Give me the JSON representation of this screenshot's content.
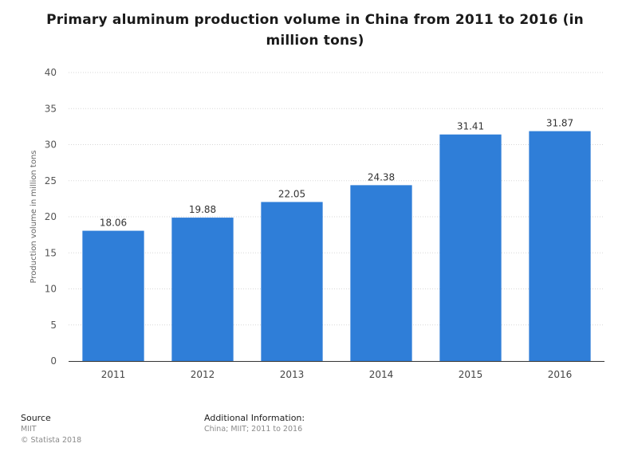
{
  "chart_data": {
    "type": "bar",
    "title": "Primary aluminum production volume in China from 2011 to 2016 (in million tons)",
    "xlabel": "",
    "ylabel": "Production volume in million tons",
    "categories": [
      "2011",
      "2012",
      "2013",
      "2014",
      "2015",
      "2016"
    ],
    "values": [
      18.06,
      19.88,
      22.05,
      24.38,
      31.41,
      31.87
    ],
    "value_labels": [
      "18.06",
      "19.88",
      "22.05",
      "24.38",
      "31.41",
      "31.87"
    ],
    "ylim": [
      0,
      40
    ],
    "yticks": [
      "0",
      "5",
      "10",
      "15",
      "20",
      "25",
      "30",
      "35",
      "40"
    ],
    "grid": true,
    "bar_color": "#2f7ed8"
  },
  "footer": {
    "source_heading": "Source",
    "source_name": "MIIT",
    "copyright": "© Statista 2018",
    "additional_heading": "Additional Information:",
    "additional_text": "China; MIIT; 2011 to 2016"
  }
}
